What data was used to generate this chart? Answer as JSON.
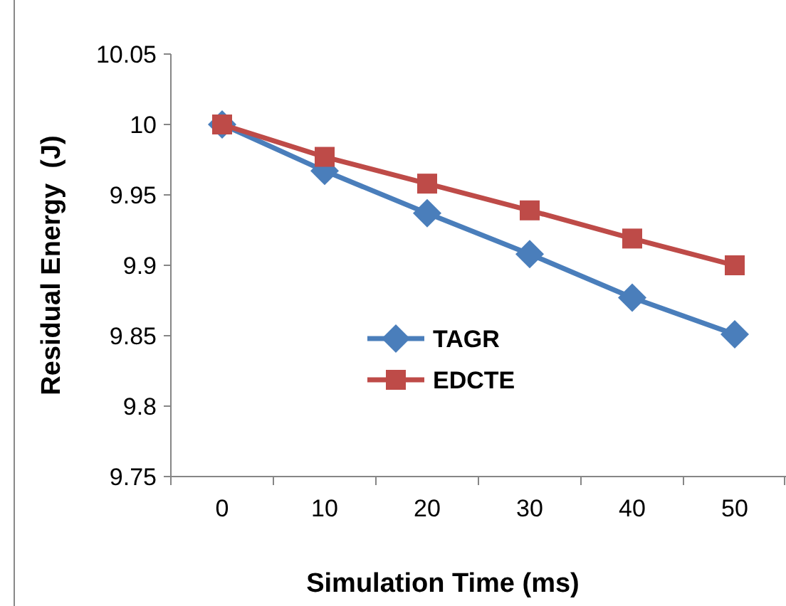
{
  "chart_data": {
    "type": "line",
    "xlabel": "Simulation Time (ms)",
    "ylabel": "Residual Energy  (J)",
    "categories": [
      "0",
      "10",
      "20",
      "30",
      "40",
      "50"
    ],
    "series": [
      {
        "name": "TAGR",
        "color": "#4a7ebb",
        "values": [
          10,
          9.967,
          9.937,
          9.908,
          9.877,
          9.851
        ],
        "marker": "diamond"
      },
      {
        "name": "EDCTE",
        "color": "#be4b48",
        "values": [
          10,
          9.977,
          9.958,
          9.939,
          9.919,
          9.9
        ],
        "marker": "square"
      }
    ],
    "ylim": [
      9.75,
      10.05
    ],
    "yticks": [
      {
        "value": 9.75,
        "label": "9.75"
      },
      {
        "value": 9.8,
        "label": "9.8"
      },
      {
        "value": 9.85,
        "label": "9.85"
      },
      {
        "value": 9.9,
        "label": "9.9"
      },
      {
        "value": 9.95,
        "label": "9.95"
      },
      {
        "value": 10,
        "label": "10"
      },
      {
        "value": 10.05,
        "label": "10.05"
      }
    ],
    "grid": false,
    "legend": "center",
    "line_style": "solid"
  }
}
